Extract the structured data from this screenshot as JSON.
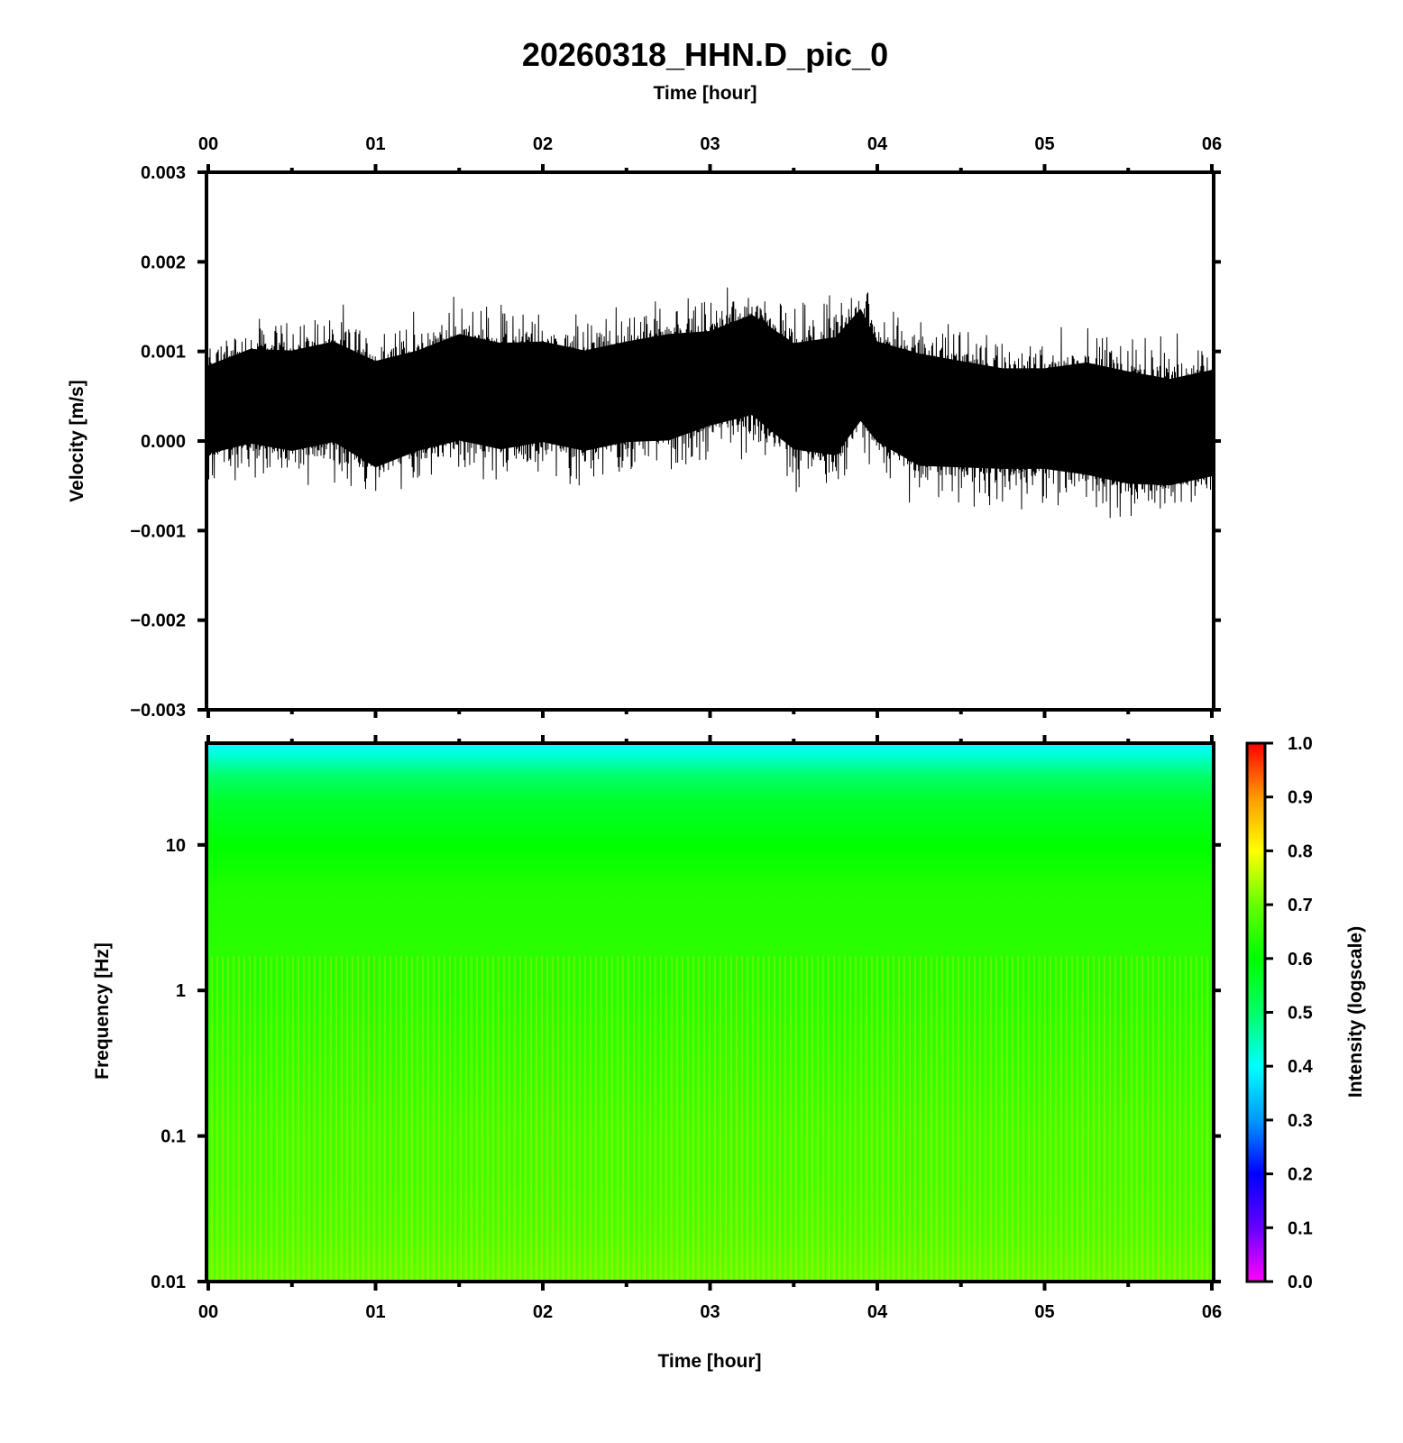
{
  "chart_data": [
    {
      "type": "line",
      "title": "20260318_HHN.D_pic_0",
      "xlabel": "Time [hour]",
      "ylabel": "Velocity [m/s]",
      "xlim": [
        0,
        6
      ],
      "ylim": [
        -0.003,
        0.003
      ],
      "x_tick_labels": [
        "00",
        "01",
        "02",
        "03",
        "04",
        "05",
        "06"
      ],
      "y_ticks": [
        0.003,
        0.002,
        0.001,
        0.0,
        -0.001,
        -0.002,
        -0.003
      ],
      "y_tick_labels": [
        "0.003",
        "0.002",
        "0.001",
        "0.000",
        "−0.001",
        "−0.002",
        "−0.003"
      ],
      "grid": false,
      "line_color": "#000000",
      "envelope": {
        "x": [
          0,
          0.25,
          0.5,
          0.75,
          1.0,
          1.25,
          1.5,
          1.75,
          2.0,
          2.25,
          2.5,
          2.75,
          3.0,
          3.25,
          3.5,
          3.75,
          3.9,
          4.0,
          4.25,
          4.5,
          4.75,
          5.0,
          5.25,
          5.5,
          5.75,
          6.0
        ],
        "upper": [
          0.0011,
          0.0013,
          0.0013,
          0.0014,
          0.0012,
          0.0013,
          0.0015,
          0.0014,
          0.0014,
          0.0013,
          0.0014,
          0.0015,
          0.0015,
          0.0017,
          0.0014,
          0.0015,
          0.0018,
          0.0014,
          0.0013,
          0.0012,
          0.0011,
          0.0011,
          0.0012,
          0.0011,
          0.001,
          0.0011
        ],
        "lower": [
          -0.0004,
          -0.0003,
          -0.0004,
          -0.0003,
          -0.0006,
          -0.0004,
          -0.0003,
          -0.0004,
          -0.0003,
          -0.0004,
          -0.0003,
          -0.0003,
          -0.0001,
          0.0,
          -0.0004,
          -0.0005,
          -0.0001,
          -0.0003,
          -0.0006,
          -0.0006,
          -0.0006,
          -0.0006,
          -0.0007,
          -0.0008,
          -0.0008,
          -0.0007
        ],
        "peak_max": 0.0021,
        "peak_min": -0.0011
      }
    },
    {
      "type": "heatmap",
      "xlabel": "Time [hour]",
      "ylabel": "Frequency [Hz]",
      "xlim": [
        0,
        6
      ],
      "ylim": [
        0.01,
        50
      ],
      "y_scale": "log",
      "x_tick_labels": [
        "00",
        "01",
        "02",
        "03",
        "04",
        "05",
        "06"
      ],
      "y_ticks": [
        10,
        1,
        0.1,
        0.01
      ],
      "y_tick_labels": [
        "10",
        "1",
        "0.1",
        "0.01"
      ],
      "colorbar_label": "Intensity (logscale)",
      "colorbar_range": [
        0.0,
        1.0
      ],
      "colorbar_tick_labels": [
        "1.0",
        "0.9",
        "0.8",
        "0.7",
        "0.6",
        "0.5",
        "0.4",
        "0.3",
        "0.2",
        "0.1",
        "0.0"
      ],
      "colormap": [
        "#ff00ff",
        "#6600ff",
        "#0000ff",
        "#0099ff",
        "#00ffff",
        "#00ff66",
        "#00ff00",
        "#66ff00",
        "#ffff00",
        "#ff9900",
        "#ff0000"
      ],
      "intensity_profile": {
        "frequency": [
          50,
          40,
          30,
          20,
          10,
          5,
          2,
          1,
          0.5,
          0.2,
          0.1,
          0.05,
          0.02,
          0.01
        ],
        "intensity": [
          0.4,
          0.44,
          0.5,
          0.56,
          0.6,
          0.63,
          0.64,
          0.64,
          0.65,
          0.66,
          0.67,
          0.67,
          0.68,
          0.7
        ]
      }
    }
  ]
}
